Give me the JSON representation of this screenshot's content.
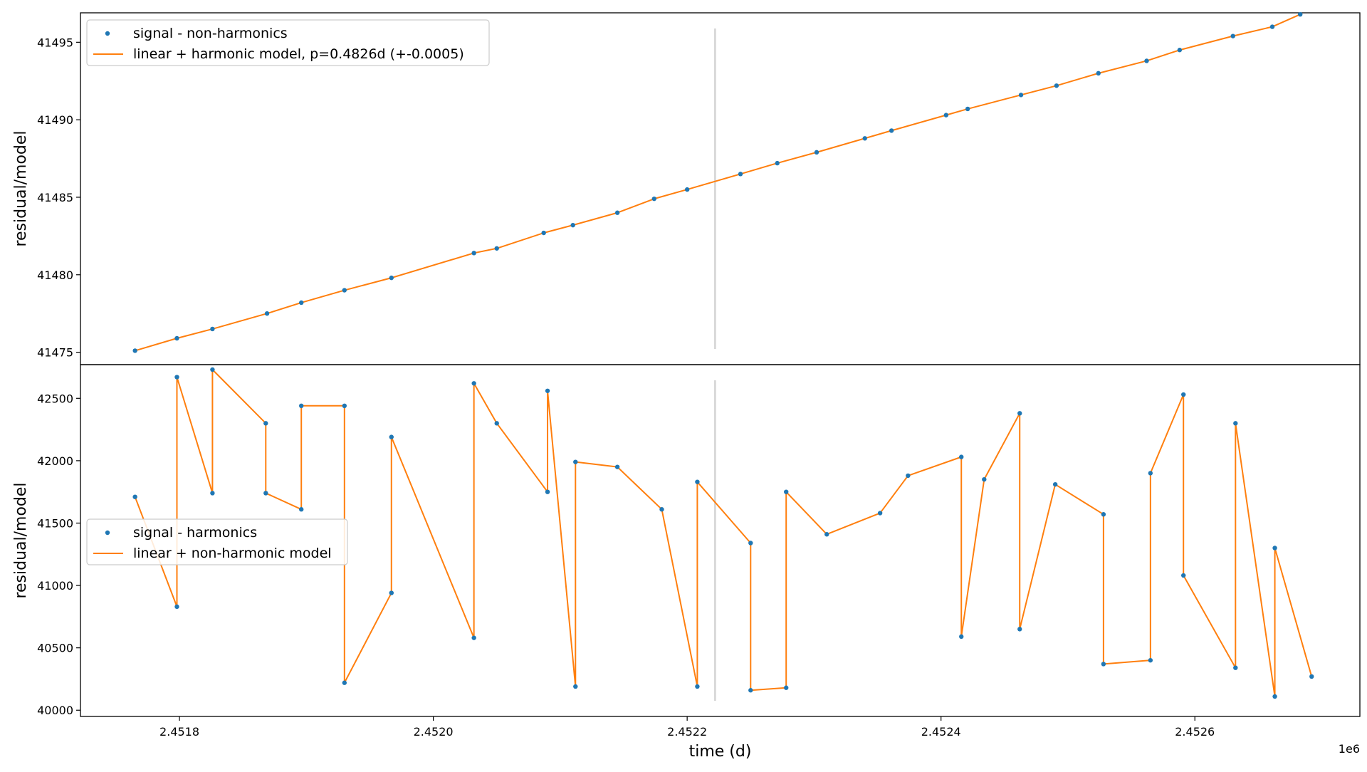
{
  "chart_data": [
    {
      "type": "line",
      "panel": "top",
      "ylabel": "residual/model",
      "ylim": [
        41474.2,
        41496.9
      ],
      "yticks": [
        41475,
        41480,
        41485,
        41490,
        41495
      ],
      "vline_x": 2452222,
      "legend": {
        "placement": "upper-left",
        "entries": [
          "signal - non-harmonics",
          "linear + harmonic model, p=0.4826d (+-0.0005)"
        ]
      },
      "series": [
        {
          "name": "signal - non-harmonics",
          "kind": "scatter",
          "color": "#1f77b4",
          "x": [
            2451765,
            2451798,
            2451826,
            2451869,
            2451896,
            2451930,
            2451967,
            2452032,
            2452050,
            2452087,
            2452110,
            2452145,
            2452174,
            2452200,
            2452242,
            2452271,
            2452302,
            2452340,
            2452361,
            2452404,
            2452421,
            2452463,
            2452491,
            2452524,
            2452562,
            2452588,
            2452630,
            2452661,
            2452683
          ],
          "y": [
            41475.1,
            41475.9,
            41476.5,
            41477.5,
            41478.2,
            41479.0,
            41479.8,
            41481.4,
            41481.7,
            41482.7,
            41483.2,
            41484.0,
            41484.9,
            41485.5,
            41486.5,
            41487.2,
            41487.9,
            41488.8,
            41489.3,
            41490.3,
            41490.7,
            41491.6,
            41492.2,
            41493.0,
            41493.8,
            41494.5,
            41495.4,
            41496.0,
            41496.8
          ]
        },
        {
          "name": "linear + harmonic model, p=0.4826d (+-0.0005)",
          "kind": "line",
          "color": "#ff7f0e",
          "x": [
            2451765,
            2451798,
            2451826,
            2451869,
            2451896,
            2451930,
            2451967,
            2452032,
            2452050,
            2452087,
            2452110,
            2452145,
            2452174,
            2452200,
            2452242,
            2452271,
            2452302,
            2452340,
            2452361,
            2452404,
            2452421,
            2452463,
            2452491,
            2452524,
            2452562,
            2452588,
            2452630,
            2452661,
            2452683
          ],
          "y": [
            41475.1,
            41475.9,
            41476.5,
            41477.5,
            41478.2,
            41479.0,
            41479.8,
            41481.4,
            41481.7,
            41482.7,
            41483.2,
            41484.0,
            41484.9,
            41485.5,
            41486.5,
            41487.2,
            41487.9,
            41488.8,
            41489.3,
            41490.3,
            41490.7,
            41491.6,
            41492.2,
            41493.0,
            41493.8,
            41494.5,
            41495.4,
            41496.0,
            41496.8
          ]
        }
      ]
    },
    {
      "type": "line",
      "panel": "bottom",
      "xlabel": "time (d)",
      "ylabel": "residual/model",
      "x_multiplier_label": "1e6",
      "xlim": [
        2451722,
        2452730
      ],
      "xticks": [
        2451800,
        2452000,
        2452200,
        2452400,
        2452600
      ],
      "xtick_labels": [
        "2.4518",
        "2.4520",
        "2.4522",
        "2.4524",
        "2.4526"
      ],
      "ylim": [
        39950,
        42770
      ],
      "yticks": [
        40000,
        40500,
        41000,
        41500,
        42000,
        42500
      ],
      "vline_x": 2452222,
      "legend": {
        "placement": "center-left",
        "entries": [
          "signal - harmonics",
          "linear + non-harmonic model"
        ]
      },
      "series": [
        {
          "name": "signal - harmonics",
          "kind": "scatter",
          "color": "#1f77b4",
          "x": [
            2451765,
            2451798,
            2451798,
            2451826,
            2451826,
            2451868,
            2451868,
            2451896,
            2451896,
            2451930,
            2451930,
            2451967,
            2451967,
            2452032,
            2452032,
            2452050,
            2452090,
            2452090,
            2452112,
            2452112,
            2452145,
            2452180,
            2452208,
            2452208,
            2452250,
            2452250,
            2452278,
            2452278,
            2452310,
            2452352,
            2452374,
            2452416,
            2452416,
            2452434,
            2452462,
            2452462,
            2452490,
            2452528,
            2452528,
            2452565,
            2452565,
            2452591,
            2452591,
            2452632,
            2452632,
            2452663,
            2452663,
            2452692
          ],
          "y": [
            41710,
            40830,
            42670,
            41740,
            42730,
            42300,
            41740,
            41610,
            42440,
            42440,
            40220,
            40940,
            42190,
            40580,
            42620,
            42300,
            41750,
            42560,
            40190,
            41990,
            41950,
            41610,
            40190,
            41830,
            41340,
            40160,
            40180,
            41750,
            41410,
            41580,
            41880,
            42030,
            40590,
            41850,
            42380,
            40650,
            41810,
            41570,
            40370,
            40400,
            41900,
            42530,
            41080,
            40340,
            42300,
            40110,
            41300,
            40270
          ]
        },
        {
          "name": "linear + non-harmonic model",
          "kind": "line",
          "color": "#ff7f0e",
          "x": [
            2451765,
            2451798,
            2451798,
            2451826,
            2451826,
            2451868,
            2451868,
            2451896,
            2451896,
            2451930,
            2451930,
            2451967,
            2451967,
            2452032,
            2452032,
            2452050,
            2452090,
            2452090,
            2452112,
            2452112,
            2452145,
            2452180,
            2452208,
            2452208,
            2452250,
            2452250,
            2452278,
            2452278,
            2452310,
            2452352,
            2452374,
            2452416,
            2452416,
            2452434,
            2452462,
            2452462,
            2452490,
            2452528,
            2452528,
            2452565,
            2452565,
            2452591,
            2452591,
            2452632,
            2452632,
            2452663,
            2452663,
            2452692
          ],
          "y": [
            41710,
            40830,
            42670,
            41740,
            42730,
            42300,
            41740,
            41610,
            42440,
            42440,
            40220,
            40940,
            42190,
            40580,
            42620,
            42300,
            41750,
            42560,
            40190,
            41990,
            41950,
            41610,
            40190,
            41830,
            41340,
            40160,
            40180,
            41750,
            41410,
            41580,
            41880,
            42030,
            40590,
            41850,
            42380,
            40650,
            41810,
            41570,
            40370,
            40400,
            41900,
            42530,
            41080,
            40340,
            42300,
            40110,
            41300,
            40270
          ]
        }
      ]
    }
  ]
}
